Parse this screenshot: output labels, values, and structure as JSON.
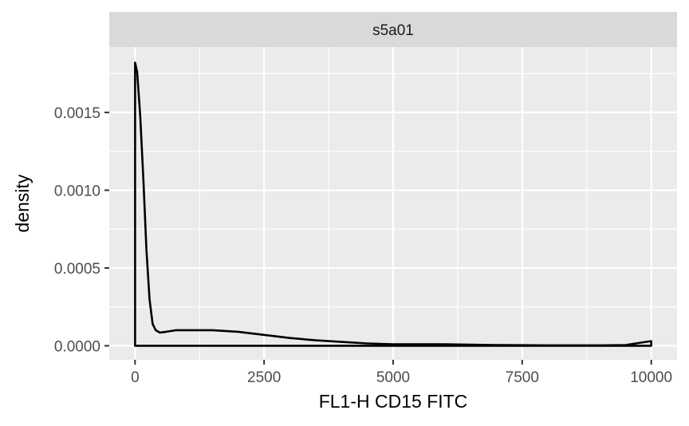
{
  "chart_data": {
    "type": "area",
    "facet_label": "s5a01",
    "xlabel": "FL1-H CD15 FITC",
    "ylabel": "density",
    "xlim": [
      -500,
      10500
    ],
    "ylim": [
      -9e-05,
      0.00192
    ],
    "x_ticks": [
      0,
      2500,
      5000,
      7500,
      10000
    ],
    "x_tick_labels": [
      "0",
      "2500",
      "5000",
      "7500",
      "10000"
    ],
    "y_ticks": [
      0,
      0.0005,
      0.001,
      0.0015
    ],
    "y_tick_labels": [
      "0.0000",
      "0.0005",
      "0.0010",
      "0.0015"
    ],
    "grid": true,
    "legend": "none",
    "colors": {
      "panel": "#ebebeb",
      "strip": "#d9d9d9",
      "grid": "#ffffff",
      "line": "#000000"
    },
    "series": [
      {
        "x": [
          0,
          40,
          100,
          160,
          220,
          280,
          340,
          400,
          480,
          600,
          800,
          1000,
          1500,
          2000,
          2500,
          3000,
          3500,
          4000,
          4500,
          5000,
          6000,
          7000,
          8000,
          9000,
          9500,
          9800,
          10000
        ],
        "y": [
          0.00182,
          0.00176,
          0.00148,
          0.00108,
          0.00062,
          0.0003,
          0.00014,
          0.0001,
          8.5e-05,
          9e-05,
          0.0001,
          0.0001,
          0.0001,
          9e-05,
          7e-05,
          5e-05,
          3.5e-05,
          2.5e-05,
          1.5e-05,
          1e-05,
          1e-05,
          5e-06,
          3e-06,
          3e-06,
          5e-06,
          2e-05,
          3e-05
        ]
      }
    ]
  }
}
